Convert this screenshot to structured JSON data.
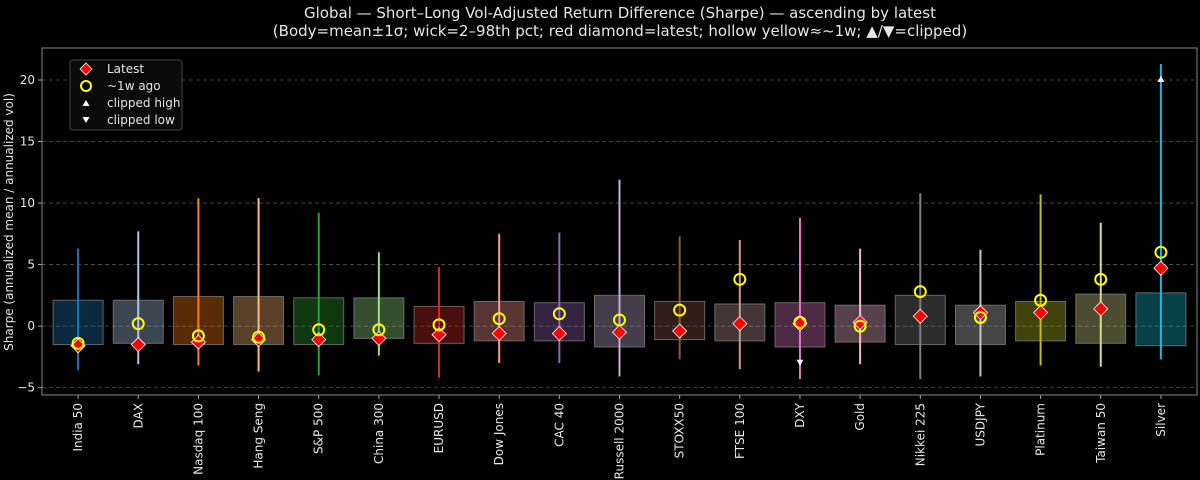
{
  "chart_data": {
    "type": "candlestick-range",
    "title": "Global — Short–Long Vol-Adjusted Return Difference (Sharpe) — ascending by latest",
    "subtitle": "(Body=mean±1σ; wick=2–98th pct; red diamond=latest; hollow yellow≈~1w; ▲/▼=clipped)",
    "xlabel": "",
    "ylabel": "Sharpe (annualized mean / annualized vol)",
    "ylim": [
      -5.6,
      22.6
    ],
    "yticks": [
      -5,
      0,
      5,
      10,
      15,
      20
    ],
    "ytick_labels": [
      "−5",
      "0",
      "5",
      "10",
      "15",
      "20"
    ],
    "grid": true,
    "legend_placement": "top-left",
    "legend": [
      {
        "label": "Latest",
        "marker": "red-diamond"
      },
      {
        "label": "~1w ago",
        "marker": "hollow-yellow-circle"
      },
      {
        "label": "clipped high",
        "marker": "white-triangle-up"
      },
      {
        "label": "clipped low",
        "marker": "white-triangle-down"
      }
    ],
    "categories": [
      "India 50",
      "DAX",
      "Nasdaq 100",
      "Hang Seng",
      "S&P 500",
      "China 300",
      "EURUSD",
      "Dow Jones",
      "CAC 40",
      "Russell 2000",
      "STOXX50",
      "FTSE 100",
      "DXY",
      "Gold",
      "Nikkei 225",
      "USDJPY",
      "Platinum",
      "Taiwan 50",
      "Silver"
    ],
    "colors": [
      "#1f77b4",
      "#aec7e8",
      "#ff7f0e",
      "#ffbb78",
      "#2ca02c",
      "#98df8a",
      "#d62728",
      "#ff9896",
      "#9467bd",
      "#c5b0d5",
      "#8c564b",
      "#c49c94",
      "#e377c2",
      "#f7b6d2",
      "#7f7f7f",
      "#c7c7c7",
      "#bcbd22",
      "#dbdb8d",
      "#17becf"
    ],
    "body_low": [
      -1.5,
      -1.4,
      -1.5,
      -1.5,
      -1.5,
      -1.0,
      -1.4,
      -1.2,
      -1.2,
      -1.7,
      -1.1,
      -1.2,
      -1.7,
      -1.3,
      -1.5,
      -1.5,
      -1.2,
      -1.4,
      -1.6
    ],
    "body_high": [
      2.1,
      2.1,
      2.4,
      2.4,
      2.3,
      2.3,
      1.6,
      2.0,
      1.9,
      2.5,
      2.0,
      1.8,
      1.9,
      1.7,
      2.5,
      1.7,
      2.0,
      2.6,
      2.7
    ],
    "wick_low": [
      -3.6,
      -3.1,
      -3.2,
      -3.7,
      -4.0,
      -2.4,
      -4.2,
      -3.0,
      -3.0,
      -4.1,
      -2.7,
      -3.5,
      -4.3,
      -3.1,
      -4.3,
      -4.1,
      -3.2,
      -3.3,
      -2.7
    ],
    "wick_high": [
      6.3,
      7.7,
      10.4,
      10.4,
      9.2,
      6.0,
      4.8,
      7.5,
      7.6,
      11.9,
      7.3,
      7.0,
      8.8,
      6.3,
      10.8,
      6.2,
      10.7,
      8.4,
      21.3
    ],
    "latest": [
      -1.6,
      -1.5,
      -1.3,
      -1.1,
      -1.1,
      -1.0,
      -0.7,
      -0.6,
      -0.6,
      -0.5,
      -0.4,
      0.2,
      0.2,
      0.3,
      0.8,
      1.1,
      1.1,
      1.4,
      4.7
    ],
    "week_ago": [
      -1.4,
      0.2,
      -0.8,
      -0.9,
      -0.3,
      -0.3,
      0.1,
      0.6,
      1.0,
      0.5,
      1.3,
      3.8,
      0.3,
      0.0,
      2.8,
      0.7,
      2.1,
      3.8,
      6.0
    ],
    "clipped_high": [
      {
        "category": "Silver",
        "value": 20
      }
    ],
    "clipped_low": [
      {
        "category": "DXY",
        "value": -2.9
      }
    ]
  }
}
